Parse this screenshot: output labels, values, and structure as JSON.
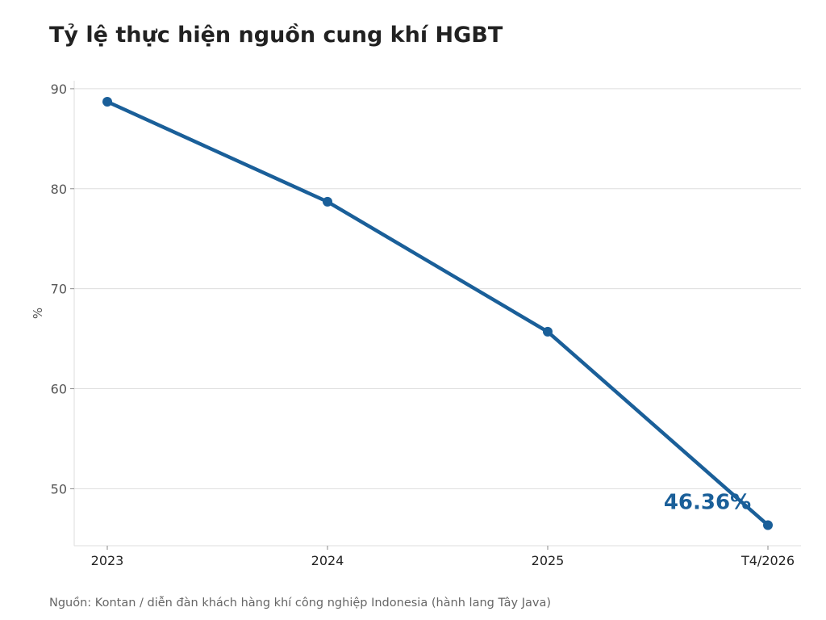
{
  "chart_data": {
    "type": "line",
    "title": "Tỷ lệ thực hiện nguồn cung khí HGBT",
    "ylabel": "%",
    "xlabel": "",
    "categories": [
      "2023",
      "2024",
      "2025",
      "T4/2026"
    ],
    "series": [
      {
        "values": [
          88.7,
          78.7,
          65.7,
          46.36
        ],
        "color": "#1a5f99"
      }
    ],
    "ylim": [
      44.3,
      90.8
    ],
    "yticks": [
      50,
      60,
      70,
      80,
      90
    ],
    "grid": "horizontal",
    "annotation": {
      "text": "46.36%",
      "category": "T4/2026",
      "color": "#1a5f99"
    }
  },
  "footer": {
    "source": "Nguồn: Kontan / diễn đàn khách hàng khí công nghiệp Indonesia (hành lang Tây Java)"
  }
}
